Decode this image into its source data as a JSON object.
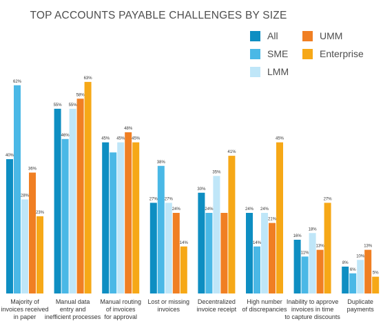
{
  "chart_data": {
    "type": "bar",
    "title": "TOP ACCOUNTS PAYABLE CHALLENGES BY SIZE",
    "xlabel": "",
    "ylabel": "",
    "ylim": [
      0,
      70
    ],
    "grid": false,
    "legend_position": "top-right",
    "categories": [
      [
        "Majority of",
        "invoices received",
        "in paper"
      ],
      [
        "Manual data",
        "entry and",
        "inefficient processes"
      ],
      [
        "Manual routing",
        "of invoices",
        "for approval"
      ],
      [
        "Lost or missing",
        "invoices"
      ],
      [
        "Decentralized",
        "invoice receipt"
      ],
      [
        "High number",
        "of discrepancies"
      ],
      [
        "Inability to approve",
        "invoices in time",
        "to capture discounts"
      ],
      [
        "Duplicate",
        "payments"
      ]
    ],
    "series": [
      {
        "name": "All",
        "color": "#0e8ec2",
        "values": [
          40,
          55,
          45,
          27,
          30,
          24,
          16,
          8
        ]
      },
      {
        "name": "SME",
        "color": "#4ab8e6",
        "values": [
          62,
          46,
          42,
          38,
          24,
          14,
          11,
          6
        ]
      },
      {
        "name": "LMM",
        "color": "#bfe6f8",
        "values": [
          28,
          55,
          45,
          27,
          35,
          24,
          18,
          10
        ]
      },
      {
        "name": "UMM",
        "color": "#f07f23",
        "values": [
          36,
          58,
          48,
          24,
          24,
          21,
          13,
          13
        ]
      },
      {
        "name": "Enterprise",
        "color": "#f6a817",
        "values": [
          23,
          63,
          45,
          14,
          41,
          45,
          27,
          5
        ]
      }
    ],
    "data_labels": [
      [
        "40%",
        "62%",
        "28%",
        "36%",
        "23%"
      ],
      [
        "55%",
        "46%",
        "55%",
        "58%",
        "63%"
      ],
      [
        "45%",
        "",
        "45%",
        "48%",
        "45%"
      ],
      [
        "27%",
        "38%",
        "27%",
        "24%",
        "14%"
      ],
      [
        "30%",
        "24%",
        "35%",
        "",
        "41%"
      ],
      [
        "24%",
        "14%",
        "24%",
        "21%",
        "45%"
      ],
      [
        "16%",
        "11%",
        "18%",
        "13%",
        "27%"
      ],
      [
        "8%",
        "6%",
        "10%",
        "13%",
        "5%"
      ]
    ]
  }
}
